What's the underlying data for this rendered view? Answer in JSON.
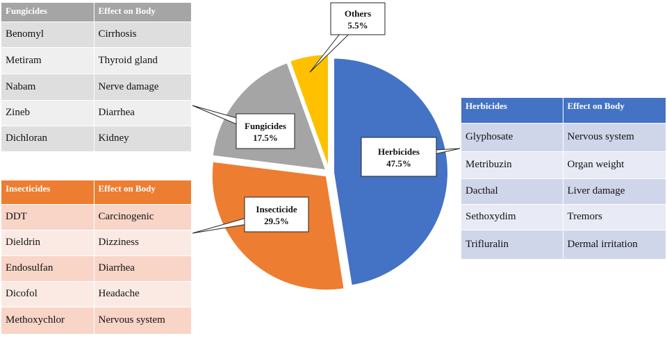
{
  "chart_data": {
    "type": "pie",
    "title": "",
    "slices": [
      {
        "label": "Herbicides",
        "value": 47.5,
        "display": "47.5%",
        "color": "#4472c4"
      },
      {
        "label": "Insecticide",
        "value": 29.5,
        "display": "29.5%",
        "color": "#ed7d31"
      },
      {
        "label": "Fungicides",
        "value": 17.5,
        "display": "17.5%",
        "color": "#a5a5a5"
      },
      {
        "label": "Others",
        "value": 5.5,
        "display": "5.5%",
        "color": "#ffc000"
      }
    ]
  },
  "tables": {
    "fungicides": {
      "header_color": "#a5a5a5",
      "row_colors": [
        "#dedede",
        "#efefef"
      ],
      "headers": [
        "Fungicides",
        "Effect on Body"
      ],
      "rows": [
        [
          "Benomyl",
          "Cirrhosis"
        ],
        [
          "Metiram",
          "Thyroid gland"
        ],
        [
          "Nabam",
          "Nerve damage"
        ],
        [
          "Zineb",
          "Diarrhea"
        ],
        [
          "Dichloran",
          "Kidney"
        ]
      ]
    },
    "insecticides": {
      "header_color": "#ed7d31",
      "row_colors": [
        "#f8d5c7",
        "#fbeae4"
      ],
      "headers": [
        "Insecticides",
        "Effect on Body"
      ],
      "rows": [
        [
          "DDT",
          "Carcinogenic"
        ],
        [
          "Dieldrin",
          "Dizziness"
        ],
        [
          "Endosulfan",
          "Diarrhea"
        ],
        [
          "Dicofol",
          "Headache"
        ],
        [
          "Methoxychlor",
          "Nervous system"
        ]
      ]
    },
    "herbicides": {
      "header_color": "#4472c4",
      "row_colors": [
        "#d0d6ea",
        "#e8ebf5"
      ],
      "headers": [
        "Herbicides",
        "Effect on Body"
      ],
      "rows": [
        [
          "Glyphosate",
          "Nervous system"
        ],
        [
          "Metribuzin",
          "Organ weight"
        ],
        [
          "Dacthal",
          "Liver damage"
        ],
        [
          "Sethoxydim",
          "Tremors"
        ],
        [
          "Trifluralin",
          "Dermal irritation"
        ]
      ]
    }
  }
}
